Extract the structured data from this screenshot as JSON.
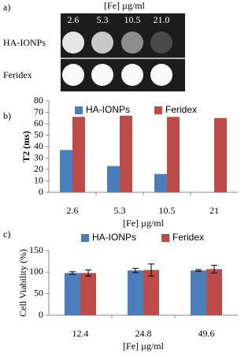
{
  "image_panel": {
    "label": "a)",
    "title": "[Fe] µg/ml",
    "columns": [
      "2.6",
      "5.3",
      "10.5",
      "21.0"
    ],
    "rows": [
      "HA-IONPs",
      "Feridex"
    ]
  },
  "chart_data": [
    {
      "type": "bar",
      "label": "b)",
      "y_label": "T2 (ms)",
      "x_label": "[Fe] µg/ml",
      "categories": [
        "2.6",
        "5.3",
        "10.5",
        "21"
      ],
      "series": [
        {
          "name": "HA-IONPs",
          "color": "#4a7ebb",
          "values": [
            37,
            23,
            16,
            null
          ]
        },
        {
          "name": "Feridex",
          "color": "#be4b48",
          "values": [
            66,
            67,
            66,
            65
          ]
        }
      ],
      "ylim": [
        0,
        80
      ],
      "yticks": [
        0,
        10,
        20,
        30,
        40,
        50,
        60,
        70,
        80
      ]
    },
    {
      "type": "bar",
      "label": "c)",
      "y_label": "Cell Viability (%)",
      "x_label": "[Fe] µg/ml",
      "categories": [
        "12.4",
        "24.8",
        "49.6"
      ],
      "series": [
        {
          "name": "HA-IONPs",
          "color": "#4a7ebb",
          "values": [
            98,
            104,
            104
          ],
          "errors": [
            3,
            5,
            2
          ]
        },
        {
          "name": "Feridex",
          "color": "#be4b48",
          "values": [
            98,
            105,
            107
          ],
          "errors": [
            7,
            14,
            9
          ]
        }
      ],
      "ylim": [
        0,
        150
      ],
      "yticks": [
        0,
        50,
        100,
        150
      ]
    }
  ]
}
